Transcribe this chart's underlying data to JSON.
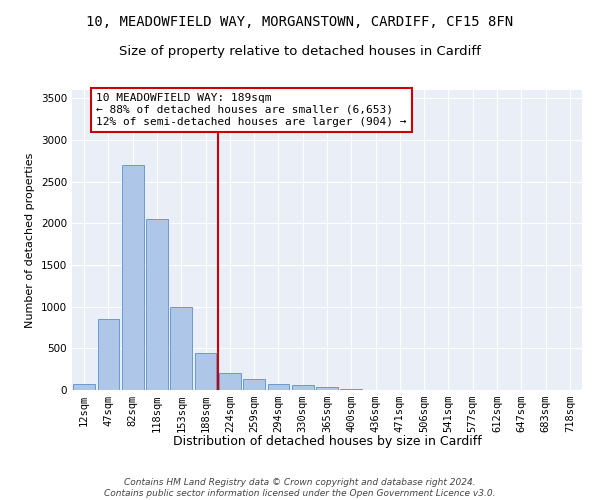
{
  "title1": "10, MEADOWFIELD WAY, MORGANSTOWN, CARDIFF, CF15 8FN",
  "title2": "Size of property relative to detached houses in Cardiff",
  "xlabel": "Distribution of detached houses by size in Cardiff",
  "ylabel": "Number of detached properties",
  "categories": [
    "12sqm",
    "47sqm",
    "82sqm",
    "118sqm",
    "153sqm",
    "188sqm",
    "224sqm",
    "259sqm",
    "294sqm",
    "330sqm",
    "365sqm",
    "400sqm",
    "436sqm",
    "471sqm",
    "506sqm",
    "541sqm",
    "577sqm",
    "612sqm",
    "647sqm",
    "683sqm",
    "718sqm"
  ],
  "values": [
    70,
    855,
    2700,
    2050,
    1000,
    450,
    200,
    130,
    75,
    62,
    32,
    10,
    5,
    3,
    2,
    1,
    0,
    0,
    0,
    0,
    0
  ],
  "bar_color": "#aec6e8",
  "bar_edge_color": "#5b8fc9",
  "vline_color": "#cc0000",
  "vline_index": 5.5,
  "annotation_text": "10 MEADOWFIELD WAY: 189sqm\n← 88% of detached houses are smaller (6,653)\n12% of semi-detached houses are larger (904) →",
  "annotation_box_color": "#ffffff",
  "annotation_box_edge": "#cc0000",
  "ylim": [
    0,
    3600
  ],
  "yticks": [
    0,
    500,
    1000,
    1500,
    2000,
    2500,
    3000,
    3500
  ],
  "bg_color": "#eaeff7",
  "footnote": "Contains HM Land Registry data © Crown copyright and database right 2024.\nContains public sector information licensed under the Open Government Licence v3.0.",
  "title1_fontsize": 10,
  "title2_fontsize": 9.5,
  "xlabel_fontsize": 9,
  "ylabel_fontsize": 8,
  "tick_fontsize": 7.5,
  "annot_fontsize": 8,
  "footnote_fontsize": 6.5
}
